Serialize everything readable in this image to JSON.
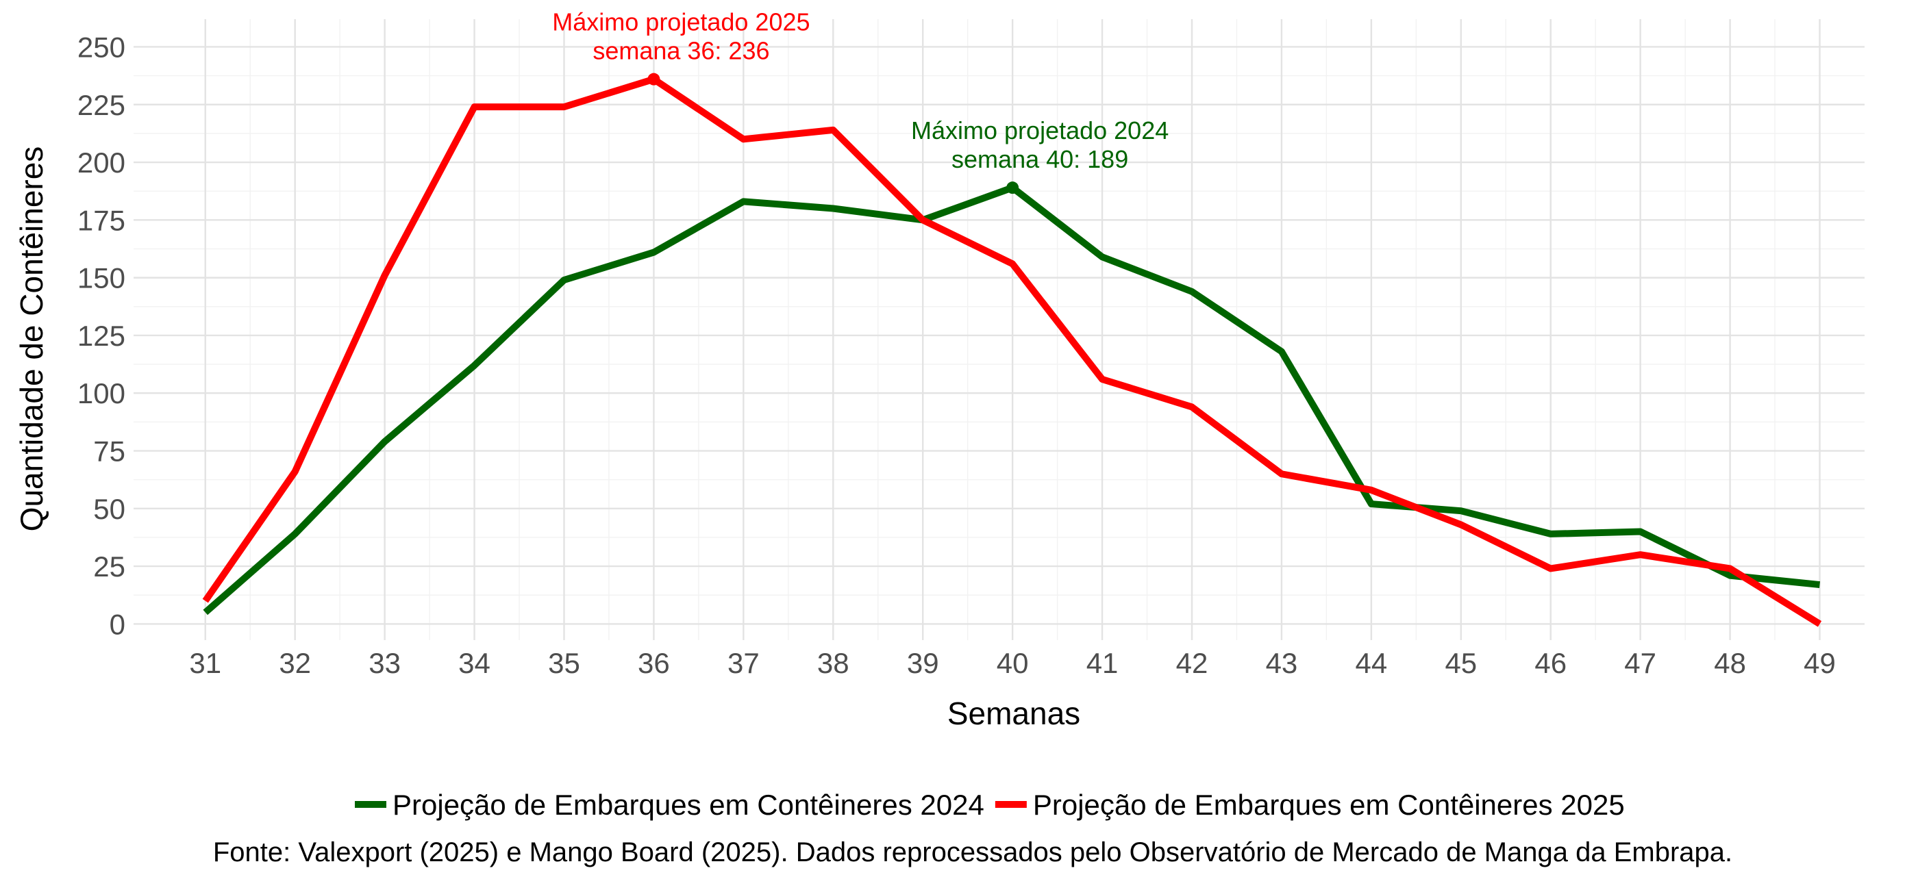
{
  "chart_data": {
    "type": "line",
    "xlabel": "Semanas",
    "ylabel": "Quantidade de Contêineres",
    "x": [
      31,
      32,
      33,
      34,
      35,
      36,
      37,
      38,
      39,
      40,
      41,
      42,
      43,
      44,
      45,
      46,
      47,
      48,
      49
    ],
    "xlim": [
      30.2,
      49.5
    ],
    "ylim": [
      -7,
      262
    ],
    "yticks": [
      0,
      25,
      50,
      75,
      100,
      125,
      150,
      175,
      200,
      225,
      250
    ],
    "grid": true,
    "legend_position": "bottom",
    "series": [
      {
        "name": "Projeção de Embarques em Contêineres 2024",
        "color": "#006400",
        "values": [
          5,
          39,
          79,
          112,
          149,
          161,
          183,
          180,
          175,
          189,
          159,
          144,
          118,
          52,
          49,
          39,
          40,
          21,
          17
        ]
      },
      {
        "name": "Projeção de Embarques em Contêineres 2025",
        "color": "#ff0000",
        "values": [
          10,
          66,
          151,
          224,
          224,
          236,
          210,
          214,
          175,
          156,
          106,
          94,
          65,
          58,
          43,
          24,
          30,
          24,
          0
        ]
      }
    ],
    "annotations": [
      {
        "series": 1,
        "x": 36,
        "y": 236,
        "line1": "Máximo projetado 2025",
        "line2": "semana 36: 236",
        "color": "#ff0000"
      },
      {
        "series": 0,
        "x": 40,
        "y": 189,
        "line1": "Máximo projetado 2024",
        "line2": "semana 40: 189",
        "color": "#006400"
      }
    ],
    "source": "Fonte: Valexport (2025) e Mango Board (2025). Dados reprocessados pelo Observatório de Mercado de Manga da Embrapa."
  }
}
